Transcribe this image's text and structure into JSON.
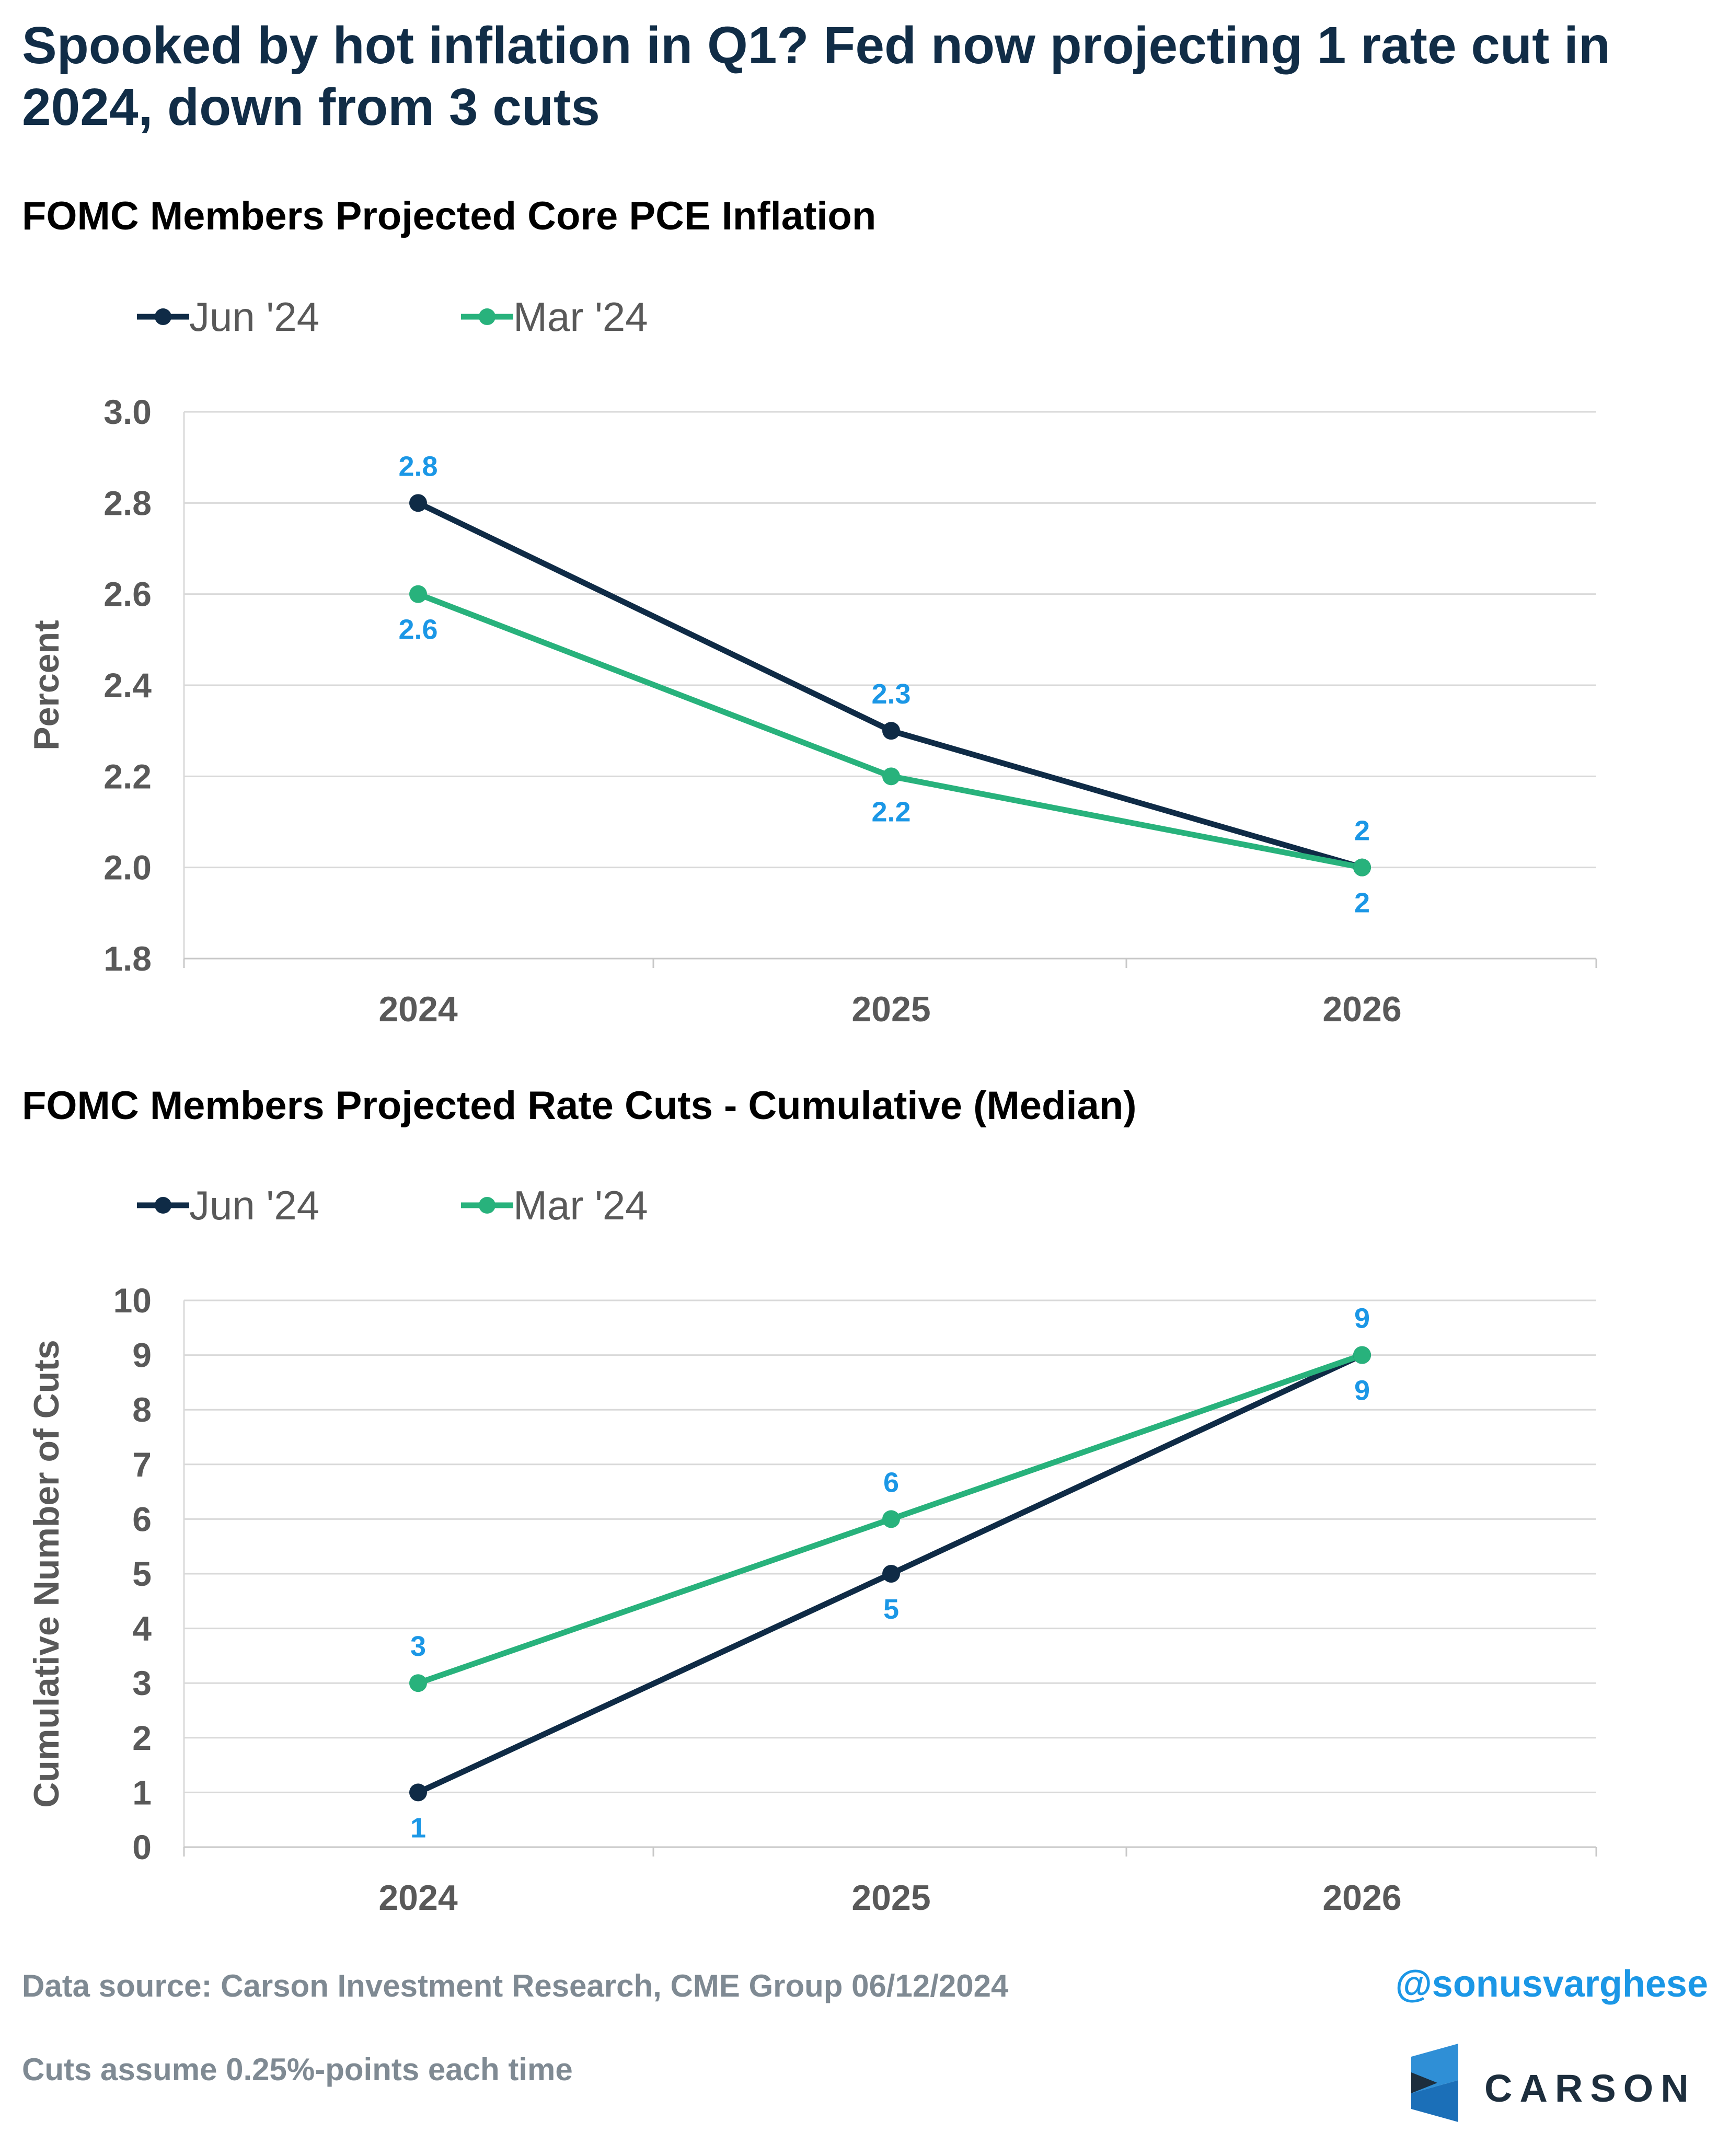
{
  "headline": "Spooked by hot inflation in Q1? Fed now projecting 1 rate cut in 2024, down from 3 cuts",
  "footer": {
    "source": "Data source: Carson Investment Research, CME Group   06/12/2024",
    "note": "Cuts assume 0.25%-points each time",
    "handle": "@sonusvarghese",
    "logo_text": "CARSON"
  },
  "colors": {
    "jun": "#0f2b46",
    "mar": "#28b27c",
    "label": "#1b97e6",
    "grid": "#d9d9d9",
    "tick": "#595959"
  },
  "chart_data": [
    {
      "type": "line",
      "title": "FOMC Members Projected Core PCE Inflation",
      "ylabel": "Percent",
      "xlabel": "",
      "categories": [
        "2024",
        "2025",
        "2026"
      ],
      "ylim": [
        1.8,
        3.0
      ],
      "yticks": [
        "1.8",
        "2.0",
        "2.2",
        "2.4",
        "2.6",
        "2.8",
        "3.0"
      ],
      "grid": true,
      "legend": "top-left",
      "series": [
        {
          "name": "Jun '24",
          "values": [
            2.8,
            2.3,
            2.0
          ],
          "labels": [
            "2.8",
            "2.3",
            "2"
          ]
        },
        {
          "name": "Mar '24",
          "values": [
            2.6,
            2.2,
            2.0
          ],
          "labels": [
            "2.6",
            "2.2",
            "2"
          ]
        }
      ]
    },
    {
      "type": "line",
      "title": "FOMC Members Projected Rate Cuts - Cumulative (Median)",
      "ylabel": "Cumulative Number of Cuts",
      "xlabel": "",
      "categories": [
        "2024",
        "2025",
        "2026"
      ],
      "ylim": [
        0,
        10
      ],
      "yticks": [
        "0",
        "1",
        "2",
        "3",
        "4",
        "5",
        "6",
        "7",
        "8",
        "9",
        "10"
      ],
      "grid": true,
      "legend": "top-left",
      "series": [
        {
          "name": "Jun '24",
          "values": [
            1,
            5,
            9
          ],
          "labels": [
            "1",
            "5",
            "9"
          ]
        },
        {
          "name": "Mar '24",
          "values": [
            3,
            6,
            9
          ],
          "labels": [
            "3",
            "6",
            "9"
          ]
        }
      ]
    }
  ]
}
